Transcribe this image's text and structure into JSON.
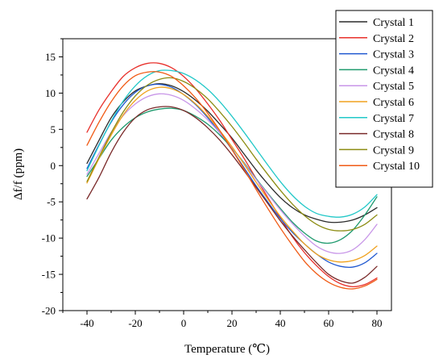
{
  "chart_data": {
    "type": "line",
    "xlabel": "Temperature (℃)",
    "ylabel": "Δf/f (ppm)",
    "xlim": [
      -50,
      86
    ],
    "ylim": [
      -20,
      17.5
    ],
    "xticks": [
      -40,
      -20,
      0,
      20,
      40,
      60,
      80
    ],
    "yticks": [
      -20,
      -15,
      -10,
      -5,
      0,
      5,
      10,
      15
    ],
    "grid": false,
    "legend_position": "top-right",
    "x": [
      -40,
      -35,
      -30,
      -25,
      -20,
      -15,
      -10,
      -5,
      0,
      5,
      10,
      15,
      20,
      25,
      30,
      35,
      40,
      45,
      50,
      55,
      60,
      65,
      70,
      75,
      80
    ],
    "series": [
      {
        "name": "Crystal 1",
        "color": "#2b2b2b",
        "values": [
          0.3,
          3.5,
          6.6,
          8.8,
          10.3,
          11.0,
          11.3,
          11.0,
          10.2,
          9.0,
          7.5,
          5.7,
          3.8,
          1.6,
          -0.6,
          -2.6,
          -4.4,
          -5.8,
          -6.8,
          -7.4,
          -7.8,
          -7.8,
          -7.5,
          -6.8,
          -5.8
        ]
      },
      {
        "name": "Crystal 2",
        "color": "#e8302b",
        "values": [
          4.6,
          7.7,
          10.2,
          12.3,
          13.5,
          14.1,
          14.1,
          13.5,
          12.3,
          10.6,
          8.5,
          6.2,
          3.6,
          1.0,
          -1.8,
          -4.5,
          -7.2,
          -9.8,
          -12.0,
          -13.8,
          -15.3,
          -16.3,
          -16.7,
          -16.4,
          -15.5
        ]
      },
      {
        "name": "Crystal 3",
        "color": "#2058d0",
        "values": [
          -0.4,
          2.9,
          6.0,
          8.4,
          10.1,
          11.0,
          11.2,
          10.8,
          9.8,
          8.4,
          6.6,
          4.5,
          2.2,
          -0.3,
          -2.8,
          -5.1,
          -7.3,
          -9.2,
          -10.8,
          -12.2,
          -13.3,
          -13.9,
          -14.0,
          -13.4,
          -12.1
        ]
      },
      {
        "name": "Crystal 4",
        "color": "#1f9a6e",
        "values": [
          -1.5,
          1.0,
          3.5,
          5.3,
          6.6,
          7.4,
          7.8,
          7.9,
          7.6,
          6.8,
          5.7,
          4.2,
          2.4,
          0.4,
          -1.8,
          -3.9,
          -5.9,
          -7.8,
          -9.3,
          -10.4,
          -10.7,
          -10.2,
          -8.9,
          -6.8,
          -4.3
        ]
      },
      {
        "name": "Crystal 5",
        "color": "#c896e8",
        "values": [
          -1.2,
          1.7,
          4.6,
          6.9,
          8.5,
          9.5,
          9.9,
          9.7,
          9.0,
          7.8,
          6.3,
          4.5,
          2.5,
          0.3,
          -1.9,
          -4.0,
          -6.1,
          -8.0,
          -9.7,
          -11.1,
          -11.9,
          -12.1,
          -11.6,
          -10.2,
          -8.1
        ]
      },
      {
        "name": "Crystal 6",
        "color": "#f0a21e",
        "values": [
          -2.4,
          1.0,
          4.2,
          7.0,
          9.0,
          10.3,
          10.8,
          10.6,
          9.8,
          8.5,
          6.8,
          4.8,
          2.6,
          0.2,
          -2.3,
          -4.7,
          -7.0,
          -9.0,
          -10.8,
          -12.2,
          -13.0,
          -13.3,
          -13.1,
          -12.4,
          -11.1
        ]
      },
      {
        "name": "Crystal 7",
        "color": "#22c8c8",
        "values": [
          -0.7,
          2.8,
          6.1,
          8.9,
          11.0,
          12.4,
          13.1,
          13.1,
          12.7,
          11.8,
          10.5,
          8.8,
          6.8,
          4.6,
          2.3,
          0.0,
          -2.2,
          -4.1,
          -5.6,
          -6.6,
          -7.0,
          -7.1,
          -6.7,
          -5.7,
          -4.0
        ]
      },
      {
        "name": "Crystal 8",
        "color": "#7a2a2a",
        "values": [
          -4.6,
          -1.6,
          1.8,
          4.6,
          6.6,
          7.7,
          8.1,
          8.1,
          7.6,
          6.6,
          5.2,
          3.5,
          1.5,
          -0.7,
          -3.0,
          -5.3,
          -7.6,
          -9.7,
          -11.6,
          -13.4,
          -15.0,
          -15.9,
          -16.2,
          -15.4,
          -13.9
        ]
      },
      {
        "name": "Crystal 9",
        "color": "#8c8c12",
        "values": [
          -2.2,
          1.2,
          4.5,
          7.4,
          9.6,
          11.1,
          11.9,
          12.1,
          11.6,
          10.6,
          9.2,
          7.4,
          5.4,
          3.2,
          0.9,
          -1.3,
          -3.4,
          -5.3,
          -6.9,
          -8.1,
          -8.8,
          -9.0,
          -8.8,
          -8.1,
          -6.8
        ]
      },
      {
        "name": "Crystal 10",
        "color": "#f05a14",
        "values": [
          2.8,
          6.0,
          8.8,
          11.0,
          12.4,
          12.9,
          12.9,
          12.3,
          11.0,
          9.3,
          7.2,
          4.8,
          2.2,
          -0.5,
          -3.3,
          -6.0,
          -8.6,
          -11.0,
          -13.2,
          -14.9,
          -16.1,
          -16.8,
          -17.0,
          -16.6,
          -15.7
        ]
      }
    ]
  }
}
